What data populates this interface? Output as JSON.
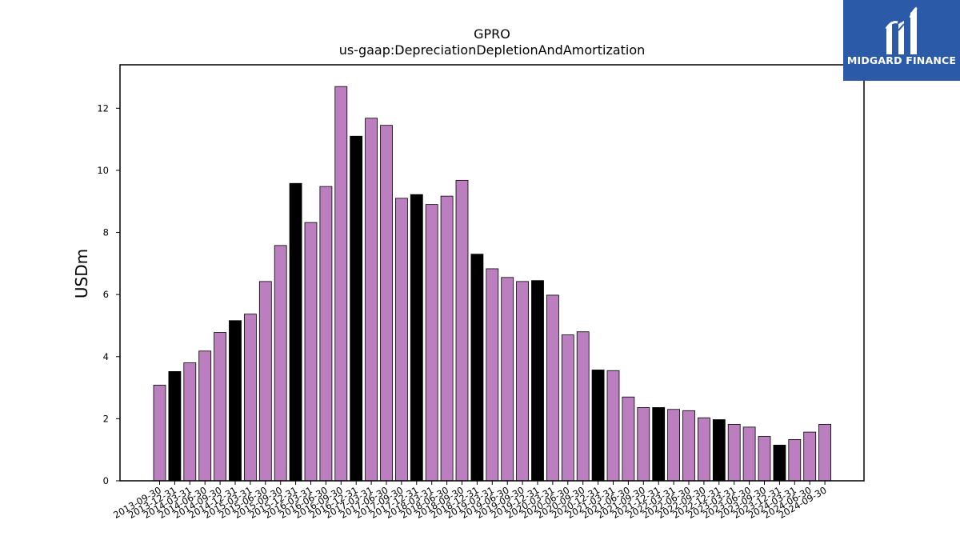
{
  "brand": {
    "logo_text": "MIDGARD FINANCE",
    "logo_color": "#2b5aa8"
  },
  "colors": {
    "default_bar": "#bb7fbf",
    "highlight_bar": "#000000"
  },
  "chart_data": {
    "type": "bar",
    "title": "GPRO",
    "subtitle": "us-gaap:DepreciationDepletionAndAmortization",
    "xlabel": "",
    "ylabel": "USDm",
    "ylim": [
      0,
      13.4
    ],
    "yticks": [
      0,
      2,
      4,
      6,
      8,
      10,
      12
    ],
    "grid": false,
    "categories": [
      "2013-09-30",
      "2013-12-31",
      "2014-03-31",
      "2014-06-30",
      "2014-09-30",
      "2014-12-31",
      "2015-03-31",
      "2015-06-30",
      "2015-09-30",
      "2015-12-31",
      "2016-03-31",
      "2016-06-30",
      "2016-09-30",
      "2016-12-31",
      "2017-03-31",
      "2017-06-30",
      "2017-09-30",
      "2017-12-31",
      "2018-03-31",
      "2018-06-30",
      "2018-09-30",
      "2018-12-31",
      "2019-03-31",
      "2019-06-30",
      "2019-09-30",
      "2019-12-31",
      "2020-03-31",
      "2020-06-30",
      "2020-09-30",
      "2020-12-31",
      "2021-03-31",
      "2021-06-30",
      "2021-09-30",
      "2021-12-31",
      "2022-03-31",
      "2022-06-30",
      "2022-09-30",
      "2022-12-31",
      "2023-03-31",
      "2023-06-30",
      "2023-09-30",
      "2023-12-31",
      "2024-03-31",
      "2024-06-30",
      "2024-09-30"
    ],
    "values": [
      3.08,
      3.52,
      3.8,
      4.18,
      4.78,
      5.16,
      5.37,
      6.42,
      7.58,
      9.58,
      8.32,
      9.48,
      12.7,
      11.1,
      11.68,
      11.45,
      9.1,
      9.22,
      8.9,
      9.17,
      9.68,
      7.3,
      6.83,
      6.55,
      6.42,
      6.45,
      5.98,
      4.7,
      4.8,
      3.57,
      3.55,
      2.7,
      2.36,
      2.36,
      2.3,
      2.26,
      2.03,
      1.97,
      1.82,
      1.73,
      1.43,
      1.15,
      1.33,
      1.57,
      1.82
    ],
    "highlighted": [
      "2013-12-31",
      "2014-12-31",
      "2015-12-31",
      "2016-12-31",
      "2017-12-31",
      "2018-12-31",
      "2019-12-31",
      "2020-12-31",
      "2021-12-31",
      "2022-12-31",
      "2023-12-31"
    ]
  }
}
